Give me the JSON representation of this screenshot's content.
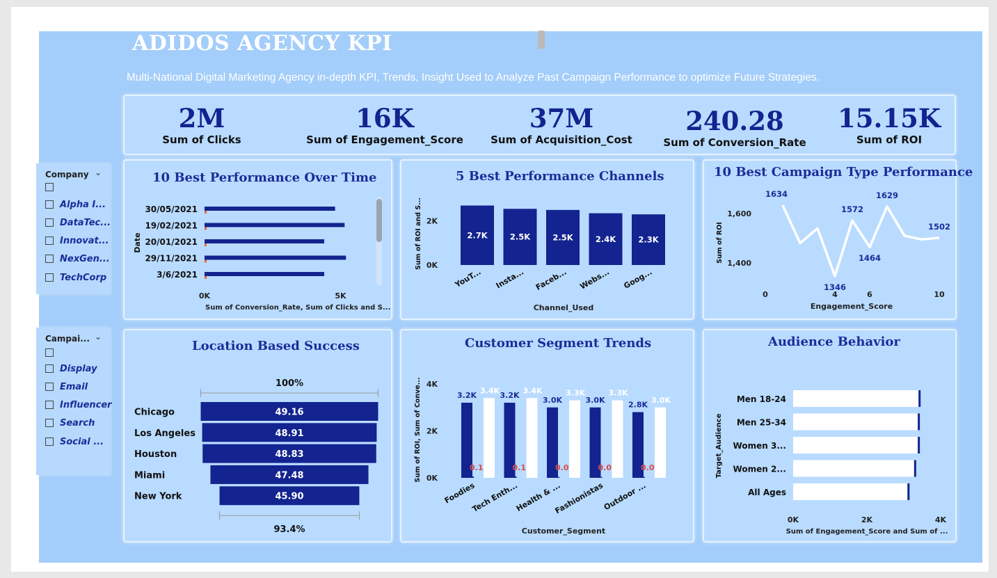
{
  "header": {
    "title": "ADIDOS  AGENCY KPI",
    "subtitle": "Multi-National Digital Marketing Agency in-depth KPI, Trends, Insight Used to Analyze Past Campaign Performance to optimize Future Strategies."
  },
  "kpis": [
    {
      "value": "2M",
      "label": "Sum of Clicks"
    },
    {
      "value": "16K",
      "label": "Sum of Engagement_Score"
    },
    {
      "value": "37M",
      "label": "Sum of Acquisition_Cost"
    },
    {
      "value": "240.28",
      "label": "Sum of Conversion_Rate"
    },
    {
      "value": "15.15K",
      "label": "Sum of ROI"
    }
  ],
  "slicers": {
    "company": {
      "title": "Company",
      "items": [
        "",
        "Alpha I...",
        "DataTec...",
        "Innovat...",
        "NexGen...",
        "TechCorp"
      ]
    },
    "campaign": {
      "title": "Campai...",
      "items": [
        "",
        "Display",
        "Email",
        "Influencer",
        "Search",
        "Social ..."
      ]
    }
  },
  "colors": {
    "bar": "#13238f",
    "accent": "#e8663a",
    "low_label": "#d94a4a",
    "white": "#ffffff"
  },
  "chart_data": [
    {
      "id": "performance_over_time",
      "type": "bar",
      "orientation": "horizontal",
      "title": "10 Best Performance Over Time",
      "xlabel": "Sum of Conversion_Rate, Sum of Clicks and S...",
      "ylabel": "Date",
      "categories": [
        "30/05/2021",
        "19/02/2021",
        "20/01/2021",
        "29/11/2021",
        "3/6/2021"
      ],
      "series": [
        {
          "values": [
            4800,
            5150,
            4400,
            5200,
            4400
          ]
        },
        {
          "values": [
            10,
            10,
            10,
            10,
            10
          ]
        },
        {
          "values": [
            100,
            100,
            100,
            100,
            100
          ]
        }
      ],
      "xticks": [
        "0K",
        "5K"
      ],
      "xlim": [
        0,
        5500
      ]
    },
    {
      "id": "channels",
      "type": "bar",
      "title": "5 Best Performance Channels",
      "xlabel": "Channel_Used",
      "ylabel": "Sum of ROI and S...",
      "categories": [
        "YouT...",
        "Insta...",
        "Faceb...",
        "Webs...",
        "Goog..."
      ],
      "values": [
        2700,
        2550,
        2500,
        2350,
        2300
      ],
      "data_labels": [
        "2.7K",
        "2.5K",
        "2.5K",
        "2.4K",
        "2.3K"
      ],
      "yticks": [
        "0K",
        "2K"
      ],
      "ylim": [
        0,
        3000
      ]
    },
    {
      "id": "campaign_type",
      "type": "line",
      "title": "10 Best Campaign Type Performance",
      "xlabel": "Engagement_Score",
      "ylabel": "Sum of ROI",
      "x": [
        1,
        2,
        3,
        4,
        5,
        6,
        7,
        8,
        9,
        10
      ],
      "values": [
        1634,
        1480,
        1540,
        1346,
        1572,
        1464,
        1629,
        1510,
        1495,
        1502
      ],
      "data_labels": [
        "1634",
        "",
        "",
        "1346",
        "1572",
        "1464",
        "1629",
        "",
        "",
        "1502"
      ],
      "xticks": [
        "0",
        "4",
        "6",
        "10"
      ],
      "yticks": [
        "1,400",
        "1,600"
      ],
      "xlim": [
        0,
        10
      ],
      "ylim": [
        1320,
        1660
      ]
    },
    {
      "id": "location",
      "type": "bar",
      "subtype": "funnel",
      "title": "Location Based Success",
      "categories": [
        "Chicago",
        "Los Angeles",
        "Houston",
        "Miami",
        "New York"
      ],
      "values": [
        49.16,
        48.91,
        48.83,
        47.48,
        45.9
      ],
      "data_labels": [
        "49.16",
        "48.91",
        "48.83",
        "47.48",
        "45.90"
      ],
      "top_percent": "100%",
      "bottom_percent": "93.4%"
    },
    {
      "id": "segments",
      "type": "bar",
      "title": "Customer Segment Trends",
      "xlabel": "Customer_Segment",
      "ylabel": "Sum of ROI, Sum of Conve...",
      "categories": [
        "Foodies",
        "Tech Enth...",
        "Health & ...",
        "Fashionistas",
        "Outdoor ..."
      ],
      "series": [
        {
          "values": [
            3200,
            3200,
            3000,
            3000,
            2800
          ],
          "labels": [
            "3.2K",
            "3.2K",
            "3.0K",
            "3.0K",
            "2.8K"
          ]
        },
        {
          "values": [
            60,
            60,
            40,
            40,
            40
          ],
          "labels": [
            "0.1K",
            "0.1K",
            "0.0K",
            "0.0K",
            "0.0K"
          ]
        },
        {
          "values": [
            3400,
            3400,
            3300,
            3300,
            3000
          ],
          "labels": [
            "3.4K",
            "3.4K",
            "3.3K",
            "3.3K",
            "3.0K"
          ]
        }
      ],
      "yticks": [
        "0K",
        "2K",
        "4K"
      ],
      "ylim": [
        0,
        4000
      ]
    },
    {
      "id": "audience",
      "type": "bar",
      "orientation": "horizontal",
      "title": "Audience Behavior",
      "xlabel": "Sum of Engagement_Score and Sum of ...",
      "ylabel": "Target_Audience",
      "categories": [
        "Men 18-24",
        "Men 25-34",
        "Women 3...",
        "Women 2...",
        "All Ages"
      ],
      "series": [
        {
          "values": [
            3400,
            3380,
            3380,
            3280,
            3100
          ]
        },
        {
          "values": [
            60,
            60,
            60,
            60,
            60
          ]
        }
      ],
      "xticks": [
        "0K",
        "2K",
        "4K"
      ],
      "xlim": [
        0,
        4000
      ]
    }
  ]
}
